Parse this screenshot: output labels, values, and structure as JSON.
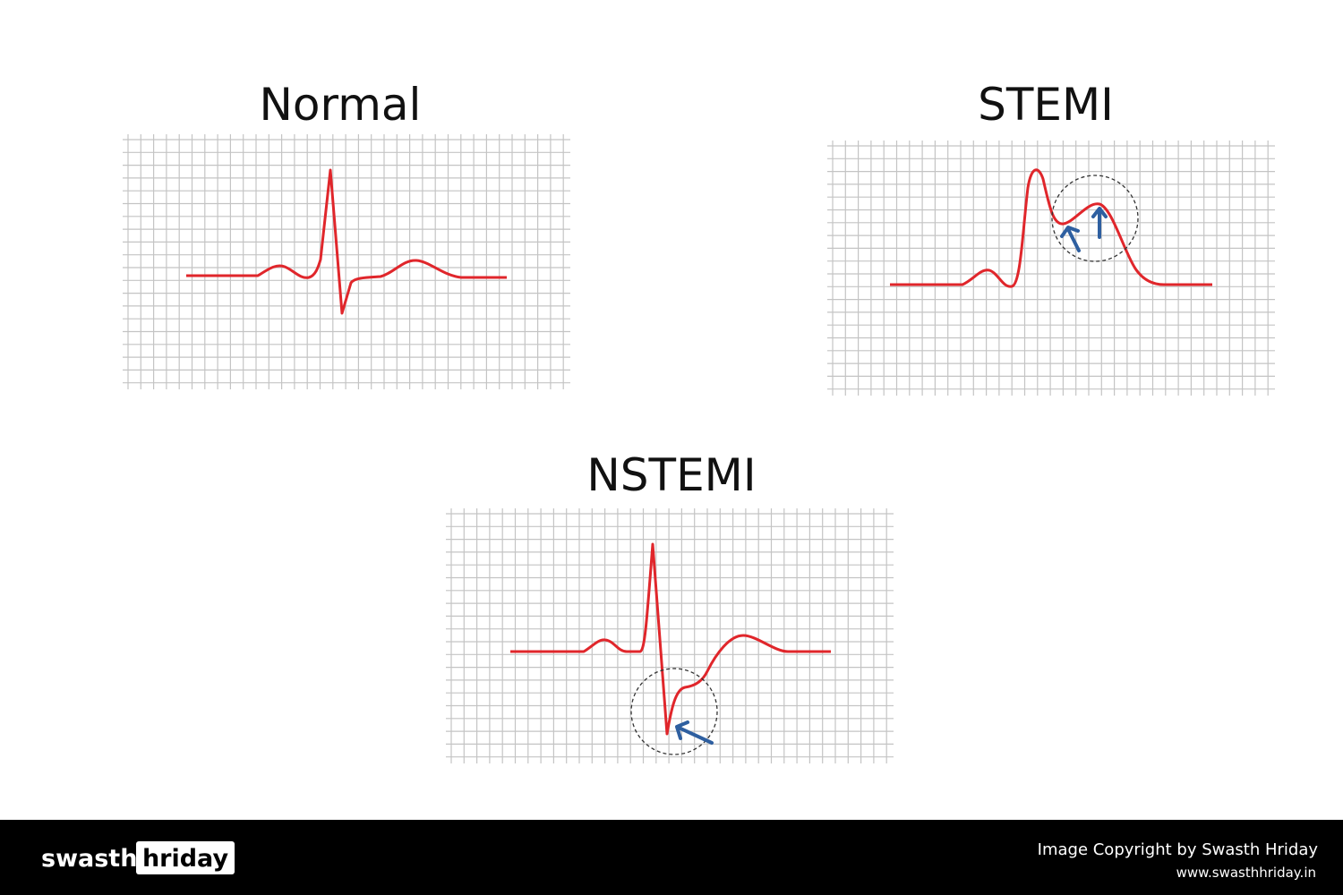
{
  "panels": [
    {
      "title": "Normal"
    },
    {
      "title": "STEMI"
    },
    {
      "title": "NSTEMI"
    }
  ],
  "footer": {
    "brand_left": "swasth",
    "brand_right": "hriday",
    "copyright": "Image Copyright by Swasth Hriday",
    "website": "www.swasthhriday.in"
  }
}
